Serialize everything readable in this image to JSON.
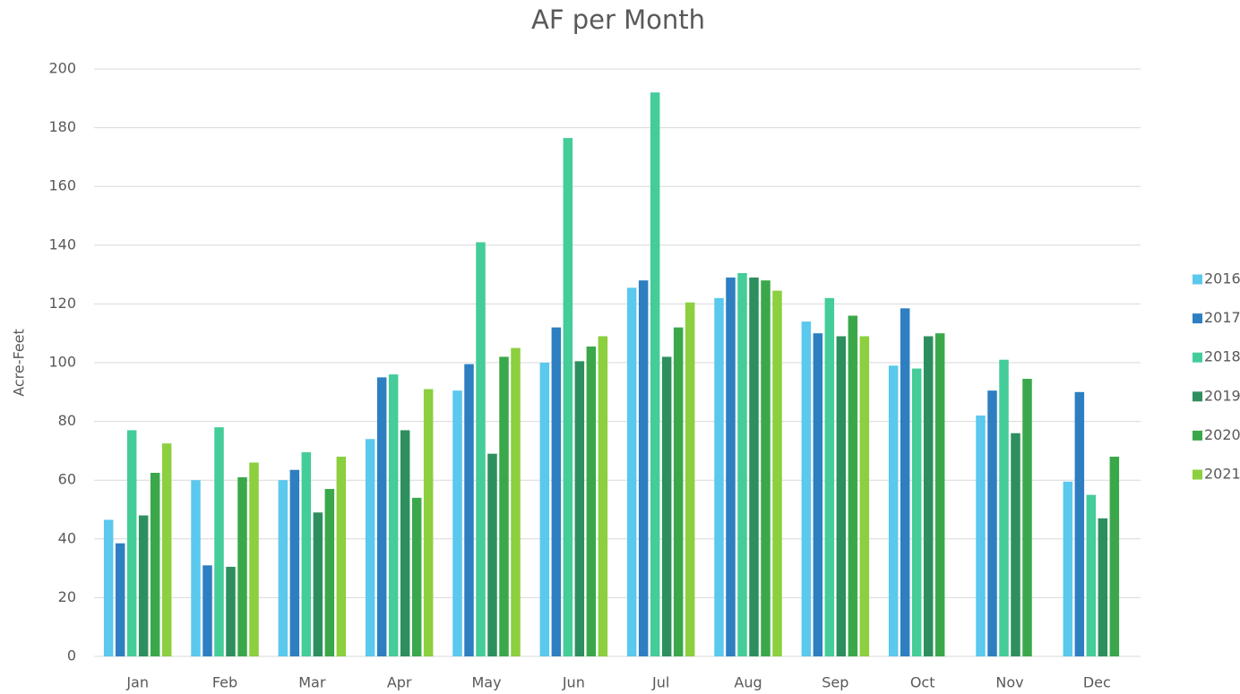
{
  "chart_data": {
    "type": "bar",
    "title": "AF per Month",
    "y_label": "Acre-Feet",
    "categories": [
      "Jan",
      "Feb",
      "Mar",
      "Apr",
      "May",
      "Jun",
      "Jul",
      "Aug",
      "Sep",
      "Oct",
      "Nov",
      "Dec"
    ],
    "series": [
      {
        "name": "2016",
        "color": "#5bc8ed",
        "values": [
          46.5,
          60,
          60,
          74,
          90.5,
          100,
          125.5,
          122,
          114,
          99,
          82,
          59.5
        ]
      },
      {
        "name": "2017",
        "color": "#2e7fc1",
        "values": [
          38.5,
          31,
          63.5,
          95,
          99.5,
          112,
          128,
          129,
          110,
          118.5,
          90.5,
          90
        ]
      },
      {
        "name": "2018",
        "color": "#44cc99",
        "values": [
          77,
          78,
          69.5,
          96,
          141,
          176.5,
          192,
          130.5,
          122,
          98,
          101,
          55
        ]
      },
      {
        "name": "2019",
        "color": "#2e8f5e",
        "values": [
          48,
          30.5,
          49,
          77,
          69,
          100.5,
          102,
          129,
          109,
          109,
          76,
          47
        ]
      },
      {
        "name": "2020",
        "color": "#3aa84a",
        "values": [
          62.5,
          61,
          57,
          54,
          102,
          105.5,
          112,
          128,
          116,
          110,
          94.5,
          68
        ]
      },
      {
        "name": "2021",
        "color": "#8ccf3f",
        "values": [
          72.5,
          66,
          68,
          91,
          105,
          109,
          120.5,
          124.5,
          109,
          null,
          null,
          null
        ]
      }
    ],
    "ylim": [
      0,
      200
    ],
    "yticks": [
      0,
      20,
      40,
      60,
      80,
      100,
      120,
      140,
      160,
      180,
      200
    ],
    "grid": true,
    "legend": "right"
  }
}
